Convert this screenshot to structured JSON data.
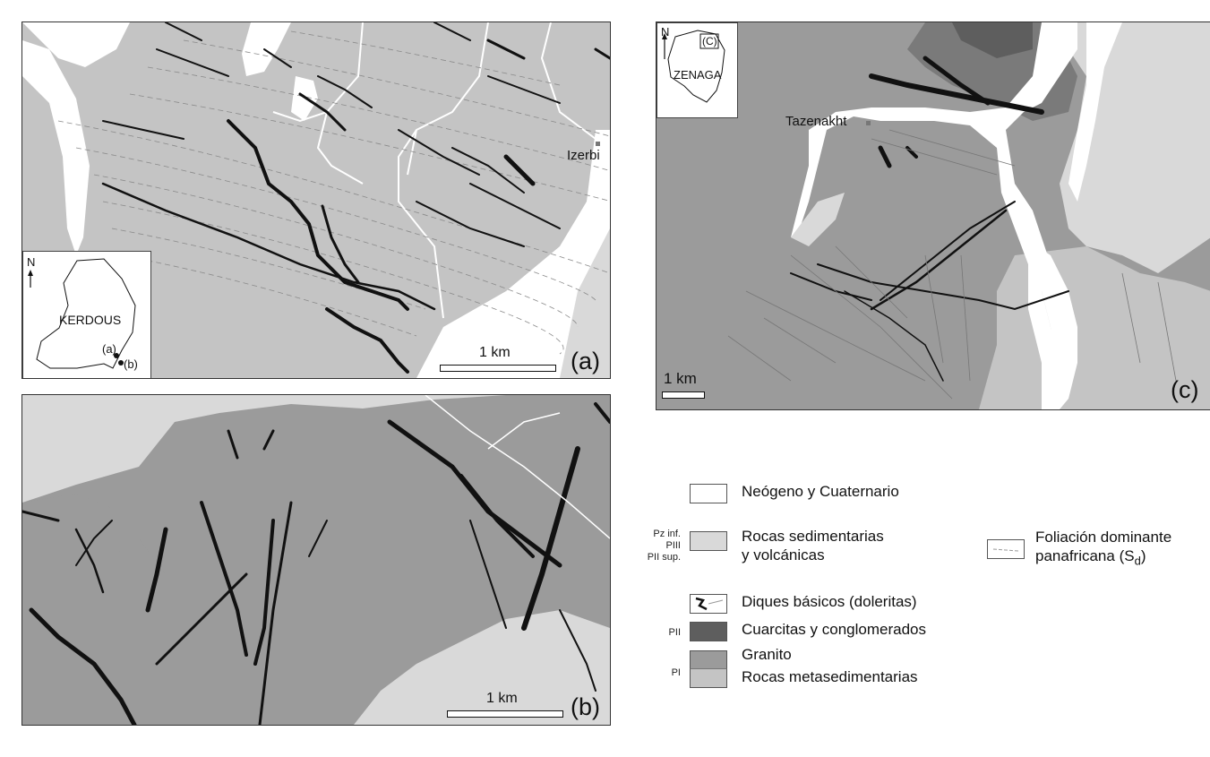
{
  "panel_a": {
    "label": "(a)",
    "scale": "1 km",
    "place": "Izerbi",
    "inset": {
      "north": "N",
      "region": "KERDOUS",
      "marker_a": "(a)",
      "marker_b": "(b)"
    }
  },
  "panel_b": {
    "label": "(b)",
    "scale": "1 km"
  },
  "panel_c": {
    "label": "(c)",
    "scale": "1 km",
    "place": "Tazenakht",
    "inset": {
      "north": "N",
      "region": "ZENAGA",
      "marker_c": "(C)"
    }
  },
  "legend": {
    "items": [
      {
        "code": "",
        "label": "Neógeno y Cuaternario",
        "color": "#ffffff"
      },
      {
        "code": "Pz inf. PIII PII sup.",
        "label": "Rocas sedimentarias y volcánicas",
        "color": "#d9d9d9"
      },
      {
        "code": "",
        "label": "Diques básicos (doleritas)",
        "color": "#ffffff"
      },
      {
        "code": "PII",
        "label": "Cuarcitas y conglomerados",
        "color": "#5e5e5e"
      },
      {
        "code": "PI",
        "label": "Granito",
        "color": "#9b9b9b"
      },
      {
        "code": "",
        "label": "Rocas metasedimentarias",
        "color": "#c4c4c4"
      }
    ],
    "codes": {
      "pz": "Pz inf.",
      "piii": "PIII",
      "piisup": "PII sup.",
      "pii": "PII",
      "pi": "PI"
    },
    "labels": {
      "neogeno": "Neógeno y Cuaternario",
      "rocas1": "Rocas sedimentarias",
      "rocas2": "y volcánicas",
      "diques": "Diques básicos (doleritas)",
      "cuarcitas": "Cuarcitas y conglomerados",
      "granito": "Granito",
      "meta": "Rocas metasedimentarias",
      "foliacion1": "Foliación dominante",
      "foliacion2": "panafricana (S",
      "foliacion_sub": "d",
      "foliacion_close": ")"
    }
  },
  "colors": {
    "neogeno": "#ffffff",
    "sedimentarias": "#d9d9d9",
    "cuarcitas": "#5e5e5e",
    "granito": "#9b9b9b",
    "metased": "#c4c4c4",
    "diques": "#111111"
  }
}
